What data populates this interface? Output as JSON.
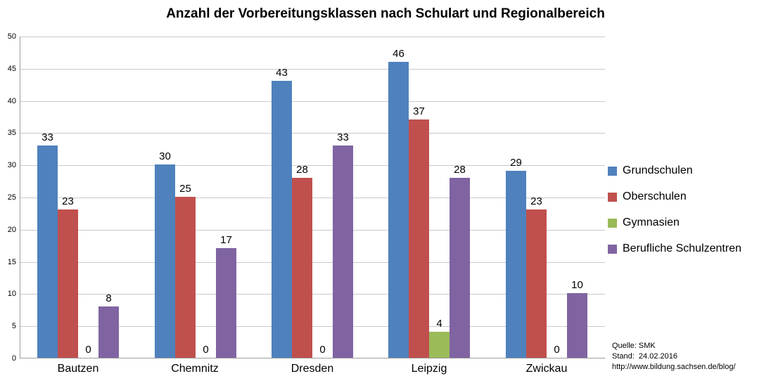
{
  "chart_data": {
    "type": "bar",
    "title": "Anzahl der Vorbereitungsklassen nach Schulart und Regionalbereich",
    "categories": [
      "Bautzen",
      "Chemnitz",
      "Dresden",
      "Leipzig",
      "Zwickau"
    ],
    "series": [
      {
        "name": "Grundschulen",
        "color": "#4F81BD",
        "values": [
          33,
          30,
          43,
          46,
          29
        ]
      },
      {
        "name": "Oberschulen",
        "color": "#C0504D",
        "values": [
          23,
          25,
          28,
          37,
          23
        ]
      },
      {
        "name": "Gymnasien",
        "color": "#9BBB59",
        "values": [
          0,
          0,
          0,
          4,
          0
        ]
      },
      {
        "name": "Berufliche Schulzentren",
        "color": "#8064A2",
        "values": [
          8,
          17,
          33,
          28,
          10
        ]
      }
    ],
    "xlabel": "",
    "ylabel": "",
    "ylim": [
      0,
      50
    ],
    "ytick_step": 5,
    "grid": true,
    "legend_position": "right",
    "data_labels": true
  },
  "source": {
    "line1": "Quelle: SMK",
    "line2": "Stand:  24.02.2016",
    "line3": "http://www.bildung.sachsen.de/blog/"
  },
  "colors": {
    "gridline": "#C9C9C9",
    "axis": "#9C9C9C",
    "text": "#000000",
    "background": "#FFFFFF"
  }
}
